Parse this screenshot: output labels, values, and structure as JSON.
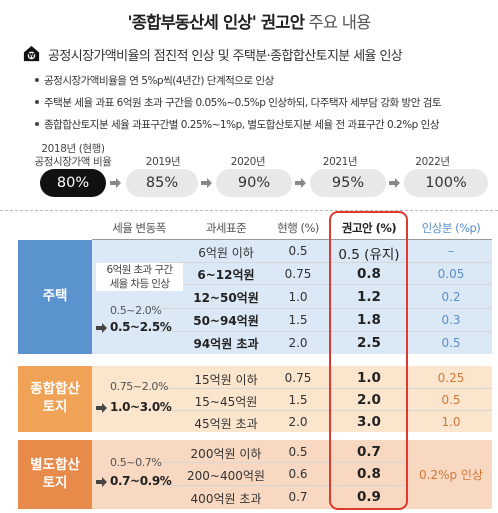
{
  "title": {
    "bold": "'종합부동산세 인상' 권고안",
    "rest": "주요 내용"
  },
  "subtitle": "공정시장가액비율의 점진적 인상 및 주택분·종합합산토지분 세율 인상",
  "bullets": [
    "공정시장가액비율을 연 5%p씩(4년간) 단계적으로 인상",
    "주택분 세율 과표 6억원 초과 구간을 0.05%~0.5%p 인상하되, 다주택자 세부담 강화 방안 검토",
    "종합합산토지분 세율 과표구간별 0.25%~1%p, 별도합산토지분 세율 전 과표구간 0.2%p 인상"
  ],
  "timeline": [
    {
      "year": "2018년 (현행)",
      "year2": "공정시장가액 비율",
      "value": "80%"
    },
    {
      "year": "2019년",
      "value": "85%"
    },
    {
      "year": "2020년",
      "value": "90%"
    },
    {
      "year": "2021년",
      "value": "95%"
    },
    {
      "year": "2022년",
      "value": "100%"
    }
  ],
  "headers": {
    "range": "세율 변동폭",
    "base": "과세표준",
    "current": "현행 (%)",
    "proposal": "권고안 (%)",
    "increase": "인상분 (%p)"
  },
  "housing": {
    "label": "주택",
    "note": [
      "6억원 초과 구간",
      "세율 차등 인상"
    ],
    "range_old": "0.5~2.0%",
    "range_new": "0.5~2.5%",
    "rows": [
      {
        "base": "6억원 이하",
        "current": "0.5",
        "proposal": "0.5 (유지)",
        "increase": "–"
      },
      {
        "base": "6~12억원",
        "current": "0.75",
        "proposal": "0.8",
        "increase": "0.05"
      },
      {
        "base": "12~50억원",
        "current": "1.0",
        "proposal": "1.2",
        "increase": "0.2"
      },
      {
        "base": "50~94억원",
        "current": "1.5",
        "proposal": "1.8",
        "increase": "0.3"
      },
      {
        "base": "94억원 초과",
        "current": "2.0",
        "proposal": "2.5",
        "increase": "0.5"
      }
    ]
  },
  "combined": {
    "label": [
      "종합합산",
      "토지"
    ],
    "range_old": "0.75~2.0%",
    "range_new": "1.0~3.0%",
    "rows": [
      {
        "base": "15억원 이하",
        "current": "0.75",
        "proposal": "1.0",
        "increase": "0.25"
      },
      {
        "base": "15~45억원",
        "current": "1.5",
        "proposal": "2.0",
        "increase": "0.5"
      },
      {
        "base": "45억원 초과",
        "current": "2.0",
        "proposal": "3.0",
        "increase": "1.0"
      }
    ]
  },
  "separate": {
    "label": [
      "별도합산",
      "토지"
    ],
    "range_old": "0.5~0.7%",
    "range_new": "0.7~0.9%",
    "increase_all": "0.2%p 인상",
    "rows": [
      {
        "base": "200억원 이하",
        "current": "0.5",
        "proposal": "0.7"
      },
      {
        "base": "200~400억원",
        "current": "0.6",
        "proposal": "0.8"
      },
      {
        "base": "400억원 초과",
        "current": "0.7",
        "proposal": "0.9"
      }
    ]
  },
  "colors": {
    "housing": "#5b93cf",
    "housing_bg": "#dbe8f5",
    "combined": "#f0a356",
    "combined_bg": "#fbe5cc",
    "separate": "#e88a4a",
    "separate_bg": "#f8d8c0",
    "highlight": "#e03a30"
  }
}
